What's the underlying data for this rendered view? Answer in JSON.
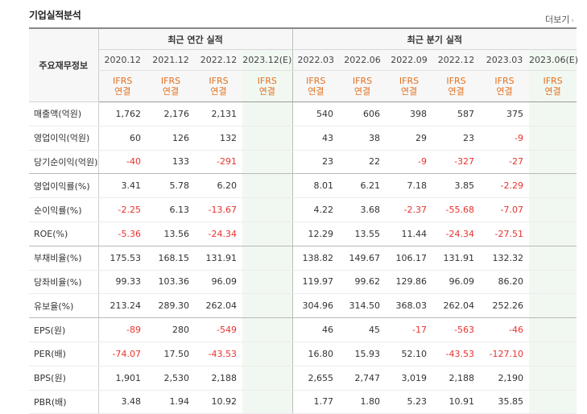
{
  "section_title": "기업실적분석",
  "more_link": "더보기",
  "table": {
    "label_header": "주요재무정보",
    "group_headers": {
      "annual": "최근 연간 실적",
      "quarterly": "최근 분기 실적"
    },
    "periods": [
      "2020.12",
      "2021.12",
      "2022.12",
      "2023.12(E)",
      "2022.03",
      "2022.06",
      "2022.09",
      "2022.12",
      "2023.03",
      "2023.06(E)"
    ],
    "standard_line1": "IFRS",
    "standard_line2": "연결",
    "rows": [
      {
        "label": "매출액(억원)",
        "values": [
          "1,762",
          "2,176",
          "2,131",
          "",
          "540",
          "606",
          "398",
          "587",
          "375",
          ""
        ]
      },
      {
        "label": "영업이익(억원)",
        "values": [
          "60",
          "126",
          "132",
          "",
          "43",
          "38",
          "29",
          "23",
          "-9",
          ""
        ]
      },
      {
        "label": "당기순이익(억원)",
        "values": [
          "-40",
          "133",
          "-291",
          "",
          "23",
          "22",
          "-9",
          "-327",
          "-27",
          ""
        ]
      },
      {
        "label": "영업이익률(%)",
        "values": [
          "3.41",
          "5.78",
          "6.20",
          "",
          "8.01",
          "6.21",
          "7.18",
          "3.85",
          "-2.29",
          ""
        ]
      },
      {
        "label": "순이익률(%)",
        "values": [
          "-2.25",
          "6.13",
          "-13.67",
          "",
          "4.22",
          "3.68",
          "-2.37",
          "-55.68",
          "-7.07",
          ""
        ]
      },
      {
        "label": "ROE(%)",
        "values": [
          "-5.36",
          "13.56",
          "-24.34",
          "",
          "12.29",
          "13.55",
          "11.44",
          "-24.34",
          "-27.51",
          ""
        ]
      },
      {
        "label": "부채비율(%)",
        "values": [
          "175.53",
          "168.15",
          "131.91",
          "",
          "138.82",
          "149.67",
          "106.17",
          "131.91",
          "132.32",
          ""
        ]
      },
      {
        "label": "당좌비율(%)",
        "values": [
          "99.33",
          "103.36",
          "96.09",
          "",
          "119.97",
          "99.62",
          "129.86",
          "96.09",
          "86.20",
          ""
        ]
      },
      {
        "label": "유보율(%)",
        "values": [
          "213.24",
          "289.30",
          "262.04",
          "",
          "304.96",
          "314.50",
          "368.03",
          "262.04",
          "252.26",
          ""
        ]
      },
      {
        "label": "EPS(원)",
        "values": [
          "-89",
          "280",
          "-549",
          "",
          "46",
          "45",
          "-17",
          "-563",
          "-46",
          ""
        ]
      },
      {
        "label": "PER(배)",
        "values": [
          "-74.07",
          "17.50",
          "-43.53",
          "",
          "16.80",
          "15.93",
          "52.10",
          "-43.53",
          "-127.10",
          ""
        ]
      },
      {
        "label": "BPS(원)",
        "values": [
          "1,901",
          "2,530",
          "2,188",
          "",
          "2,655",
          "2,747",
          "3,019",
          "2,188",
          "2,190",
          ""
        ]
      },
      {
        "label": "PBR(배)",
        "values": [
          "3.48",
          "1.94",
          "10.92",
          "",
          "1.77",
          "1.80",
          "5.23",
          "10.91",
          "35.85",
          ""
        ]
      }
    ],
    "negative_color": "#e8322f",
    "standard_color": "#e4701e"
  }
}
